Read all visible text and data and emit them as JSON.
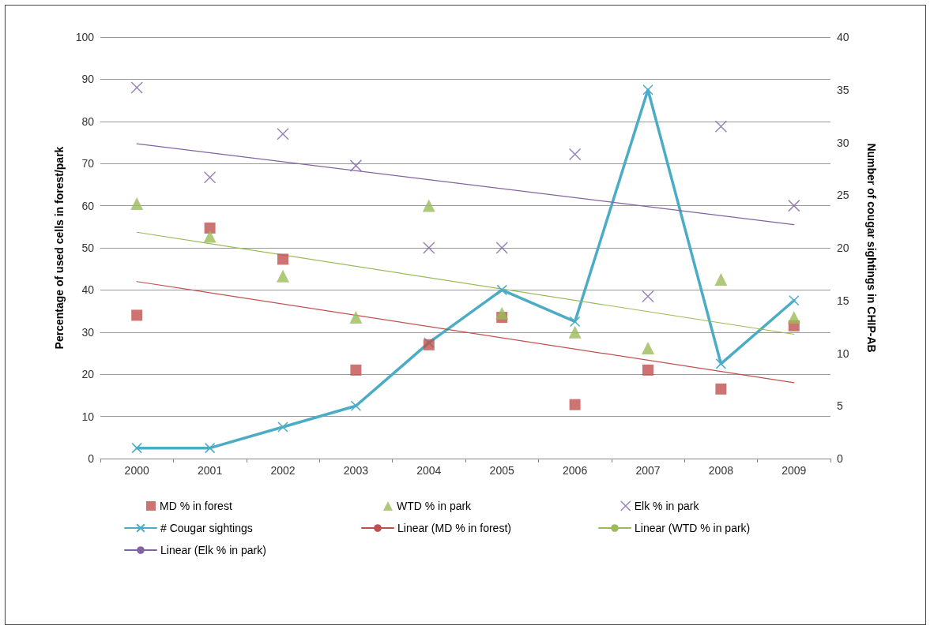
{
  "chart_data": {
    "type": "scatter",
    "ylabel": "Percentage of used cells in forest/park",
    "y2label": "Number of cougar sightings in CHIP-AB",
    "categories": [
      "2000",
      "2001",
      "2002",
      "2003",
      "2004",
      "2005",
      "2006",
      "2007",
      "2008",
      "2009"
    ],
    "ylim": [
      0,
      100
    ],
    "yticks": [
      0,
      10,
      20,
      30,
      40,
      50,
      60,
      70,
      80,
      90,
      100
    ],
    "y2lim": [
      0,
      40
    ],
    "y2ticks": [
      0,
      5,
      10,
      15,
      20,
      25,
      30,
      35,
      40
    ],
    "grid": "y",
    "legend": "bottom",
    "series": [
      {
        "name": "MD % in forest",
        "marker": "square",
        "color": "#c0504d",
        "values": [
          34,
          54.7,
          47.3,
          21,
          27,
          33.5,
          12.8,
          21,
          16.5,
          31.5
        ]
      },
      {
        "name": "WTD % in park",
        "marker": "triangle",
        "color": "#9bbb59",
        "values": [
          60.5,
          52.7,
          43.3,
          33.5,
          60,
          34.5,
          30,
          26.2,
          42.5,
          33.5
        ]
      },
      {
        "name": "Elk % in park",
        "marker": "cross",
        "color": "#8064a2",
        "values": [
          88,
          66.7,
          77,
          69.5,
          50,
          50,
          72.2,
          38.5,
          78.8,
          60
        ]
      },
      {
        "name": "# Cougar sightings",
        "type": "line",
        "marker": "cross",
        "axis": "y2",
        "color": "#4bacc6",
        "values": [
          1,
          1,
          3,
          5,
          11,
          16,
          13,
          35,
          9,
          15
        ]
      },
      {
        "name": "Linear (MD % in forest)",
        "type": "line",
        "marker": "none",
        "color": "#c0504d",
        "values": [
          42,
          null,
          null,
          null,
          null,
          null,
          null,
          null,
          null,
          18
        ]
      },
      {
        "name": "Linear (WTD % in park)",
        "type": "line",
        "marker": "none",
        "color": "#9bbb59",
        "values": [
          53.7,
          null,
          null,
          null,
          null,
          null,
          null,
          null,
          null,
          29.5
        ]
      },
      {
        "name": "Linear (Elk % in park)",
        "type": "line",
        "marker": "none",
        "color": "#8064a2",
        "values": [
          74.7,
          null,
          null,
          null,
          null,
          null,
          null,
          null,
          null,
          55.5
        ]
      }
    ]
  }
}
